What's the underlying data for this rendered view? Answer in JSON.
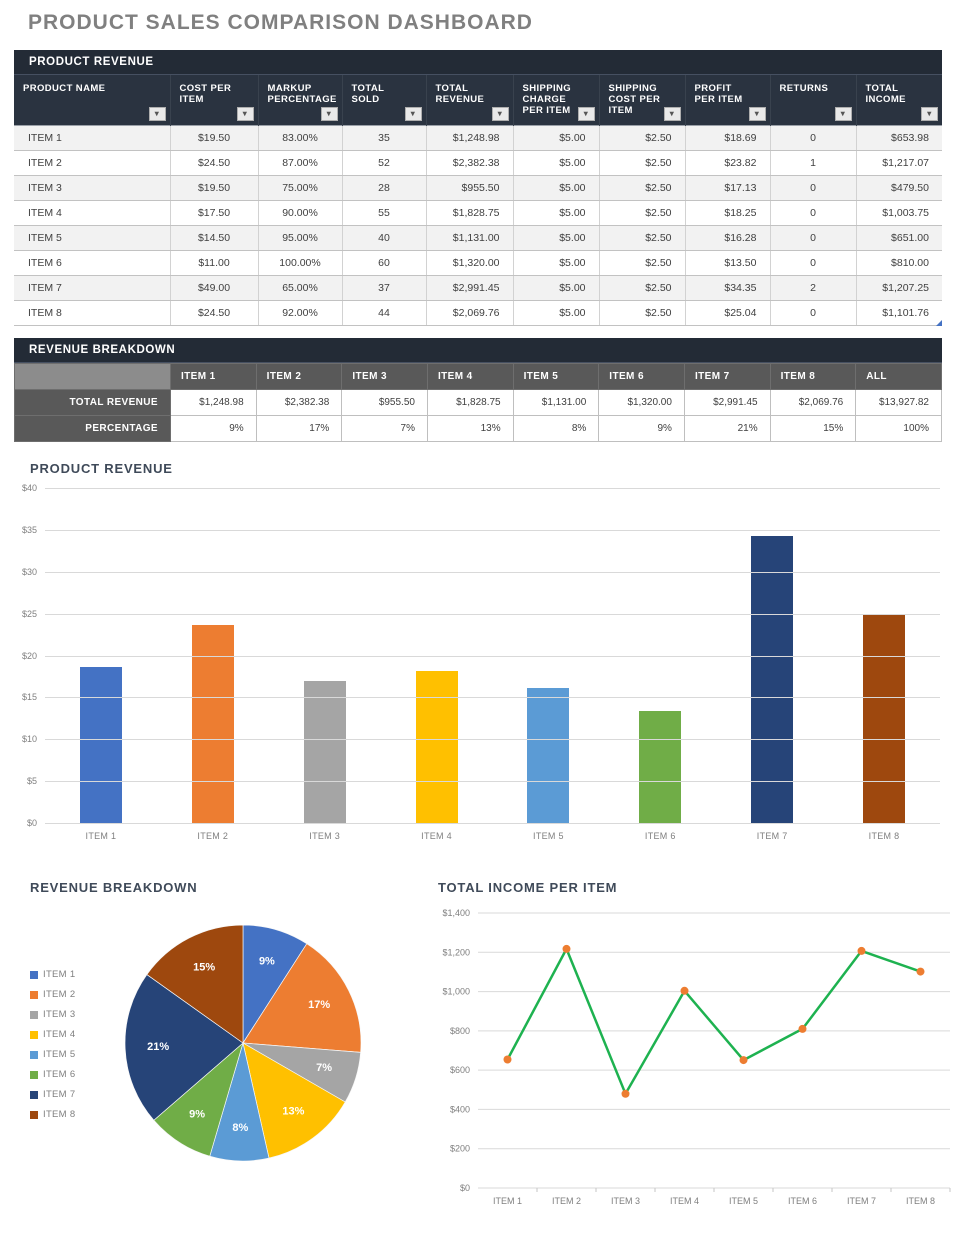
{
  "page": {
    "title": "PRODUCT SALES COMPARISON DASHBOARD"
  },
  "icons": {
    "filter_dropdown_icon": "▾"
  },
  "product_revenue_table": {
    "section_title": "PRODUCT REVENUE",
    "columns": [
      "PRODUCT NAME",
      "COST PER ITEM",
      "MARKUP PERCENTAGE",
      "TOTAL SOLD",
      "TOTAL REVENUE",
      "SHIPPING CHARGE PER ITEM",
      "SHIPPING COST PER ITEM",
      "PROFIT PER ITEM",
      "RETURNS",
      "TOTAL INCOME"
    ],
    "rows": [
      [
        "ITEM 1",
        "$19.50",
        "83.00%",
        "35",
        "$1,248.98",
        "$5.00",
        "$2.50",
        "$18.69",
        "0",
        "$653.98"
      ],
      [
        "ITEM 2",
        "$24.50",
        "87.00%",
        "52",
        "$2,382.38",
        "$5.00",
        "$2.50",
        "$23.82",
        "1",
        "$1,217.07"
      ],
      [
        "ITEM 3",
        "$19.50",
        "75.00%",
        "28",
        "$955.50",
        "$5.00",
        "$2.50",
        "$17.13",
        "0",
        "$479.50"
      ],
      [
        "ITEM 4",
        "$17.50",
        "90.00%",
        "55",
        "$1,828.75",
        "$5.00",
        "$2.50",
        "$18.25",
        "0",
        "$1,003.75"
      ],
      [
        "ITEM 5",
        "$14.50",
        "95.00%",
        "40",
        "$1,131.00",
        "$5.00",
        "$2.50",
        "$16.28",
        "0",
        "$651.00"
      ],
      [
        "ITEM 6",
        "$11.00",
        "100.00%",
        "60",
        "$1,320.00",
        "$5.00",
        "$2.50",
        "$13.50",
        "0",
        "$810.00"
      ],
      [
        "ITEM 7",
        "$49.00",
        "65.00%",
        "37",
        "$2,991.45",
        "$5.00",
        "$2.50",
        "$34.35",
        "2",
        "$1,207.25"
      ],
      [
        "ITEM 8",
        "$24.50",
        "92.00%",
        "44",
        "$2,069.76",
        "$5.00",
        "$2.50",
        "$25.04",
        "0",
        "$1,101.76"
      ]
    ]
  },
  "revenue_breakdown_table": {
    "section_title": "REVENUE BREAKDOWN",
    "columns": [
      "ITEM 1",
      "ITEM 2",
      "ITEM 3",
      "ITEM 4",
      "ITEM 5",
      "ITEM 6",
      "ITEM 7",
      "ITEM 8",
      "ALL"
    ],
    "rows": [
      {
        "label": "TOTAL REVENUE",
        "values": [
          "$1,248.98",
          "$2,382.38",
          "$955.50",
          "$1,828.75",
          "$1,131.00",
          "$1,320.00",
          "$2,991.45",
          "$2,069.76",
          "$13,927.82"
        ]
      },
      {
        "label": "PERCENTAGE",
        "values": [
          "9%",
          "17%",
          "7%",
          "13%",
          "8%",
          "9%",
          "21%",
          "15%",
          "100%"
        ]
      }
    ]
  },
  "chart_data": [
    {
      "type": "bar",
      "title": "PRODUCT REVENUE",
      "categories": [
        "ITEM 1",
        "ITEM 2",
        "ITEM 3",
        "ITEM 4",
        "ITEM 5",
        "ITEM 6",
        "ITEM 7",
        "ITEM 8"
      ],
      "values": [
        18.69,
        23.82,
        17.13,
        18.25,
        16.28,
        13.5,
        34.35,
        25.04
      ],
      "ylim": [
        0,
        40
      ],
      "ytick_step": 5,
      "ytick_labels": [
        "$0",
        "$5",
        "$10",
        "$15",
        "$20",
        "$25",
        "$30",
        "$35",
        "$40"
      ],
      "grid": true,
      "bar_colors": [
        "#4472C4",
        "#ED7D31",
        "#A5A5A5",
        "#FFC000",
        "#5B9BD5",
        "#70AD47",
        "#264478",
        "#9E480E"
      ]
    },
    {
      "type": "pie",
      "title": "REVENUE BREAKDOWN",
      "labels": [
        "ITEM 1",
        "ITEM 2",
        "ITEM 3",
        "ITEM 4",
        "ITEM 5",
        "ITEM 6",
        "ITEM 7",
        "ITEM 8"
      ],
      "values": [
        9,
        17,
        7,
        13,
        8,
        9,
        21,
        15
      ],
      "value_labels": [
        "9%",
        "17%",
        "7%",
        "13%",
        "8%",
        "9%",
        "21%",
        "15%"
      ],
      "colors": [
        "#4472C4",
        "#ED7D31",
        "#A5A5A5",
        "#FFC000",
        "#5B9BD5",
        "#70AD47",
        "#264478",
        "#9E480E"
      ],
      "legend_position": "left",
      "start_angle_deg": -90,
      "direction": "clockwise"
    },
    {
      "type": "line",
      "title": "TOTAL INCOME PER ITEM",
      "categories": [
        "ITEM 1",
        "ITEM 2",
        "ITEM 3",
        "ITEM 4",
        "ITEM 5",
        "ITEM 6",
        "ITEM 7",
        "ITEM 8"
      ],
      "values": [
        653.98,
        1217.07,
        479.5,
        1003.75,
        651.0,
        810.0,
        1207.25,
        1101.76
      ],
      "ylim": [
        0,
        1400
      ],
      "ytick_step": 200,
      "ytick_labels": [
        "$0",
        "$200",
        "$400",
        "$600",
        "$800",
        "$1,000",
        "$1,200",
        "$1,400"
      ],
      "grid": true,
      "line_color": "#1EB250",
      "marker_color": "#ED7D31"
    }
  ]
}
